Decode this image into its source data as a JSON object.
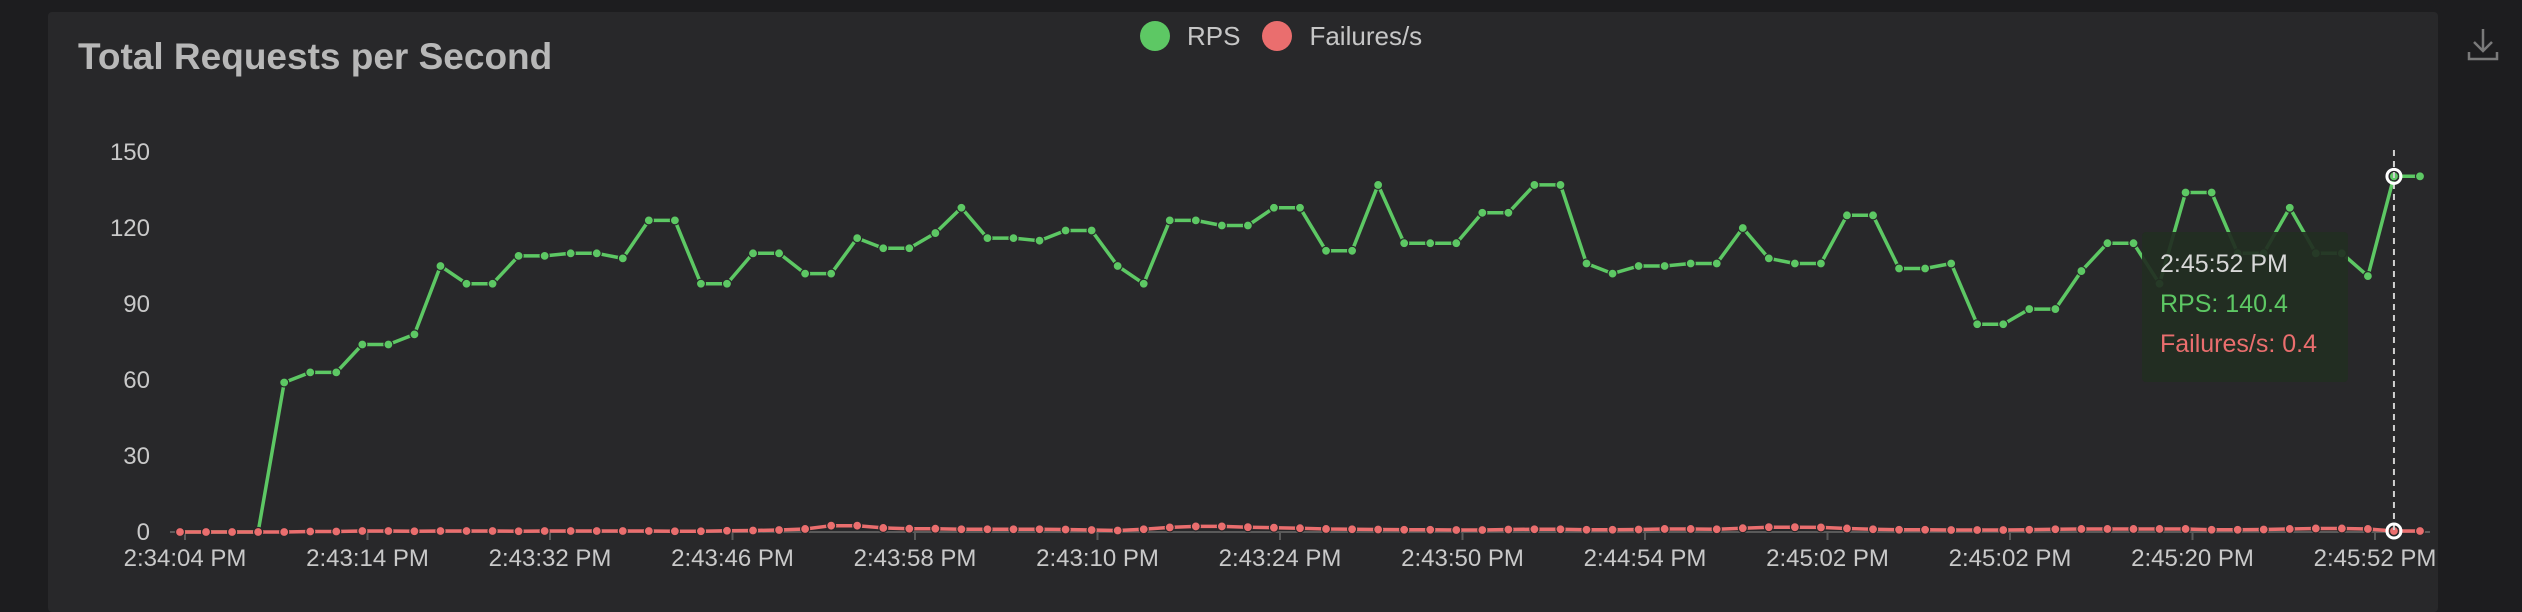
{
  "chart_data": {
    "type": "line",
    "title": "Total Requests per Second",
    "xlabel": "",
    "ylabel": "",
    "ylim": [
      0,
      150
    ],
    "yticks": [
      0,
      30,
      60,
      90,
      120,
      150
    ],
    "grid": false,
    "legend_position": "top-center",
    "x_tick_labels": [
      "2:34:04 PM",
      "2:43:14 PM",
      "2:43:32 PM",
      "2:43:46 PM",
      "2:43:58 PM",
      "2:43:10 PM",
      "2:43:24 PM",
      "2:43:50 PM",
      "2:44:54 PM",
      "2:45:02 PM",
      "2:45:02 PM",
      "2:45:20 PM",
      "2:45:52 PM"
    ],
    "series": [
      {
        "name": "RPS",
        "color": "#5dc864",
        "values": [
          0,
          0,
          0,
          0,
          59,
          63,
          63,
          74,
          74,
          78,
          105,
          98,
          98,
          109,
          109,
          110,
          110,
          108,
          123,
          123,
          98,
          98,
          110,
          110,
          102,
          102,
          116,
          112,
          112,
          118,
          128,
          116,
          116,
          115,
          119,
          119,
          105,
          98,
          123,
          123,
          121,
          121,
          128,
          128,
          111,
          111,
          137,
          114,
          114,
          114,
          126,
          126,
          137,
          137,
          106,
          102,
          105,
          105,
          106,
          106,
          120,
          108,
          106,
          106,
          125,
          125,
          104,
          104,
          106,
          82,
          82,
          88,
          88,
          103,
          114,
          114,
          98,
          134,
          134,
          110,
          110,
          128,
          110,
          110,
          101,
          140.4,
          140.4
        ]
      },
      {
        "name": "Failures/s",
        "color": "#ea6e6e",
        "values": [
          0,
          0,
          0,
          0,
          0,
          0.2,
          0.2,
          0.4,
          0.4,
          0.3,
          0.4,
          0.4,
          0.4,
          0.3,
          0.4,
          0.4,
          0.4,
          0.4,
          0.4,
          0.3,
          0.3,
          0.5,
          0.6,
          0.8,
          1.2,
          2.5,
          2.5,
          1.6,
          1.3,
          1.3,
          1.1,
          1.1,
          1.1,
          1.1,
          1,
          0.8,
          0.6,
          1.1,
          1.8,
          2.2,
          2.2,
          1.9,
          1.7,
          1.5,
          1.2,
          1.1,
          1,
          0.9,
          0.9,
          0.8,
          0.8,
          1,
          1.1,
          1.1,
          0.9,
          0.9,
          1,
          1.2,
          1.2,
          1.1,
          1.5,
          1.9,
          1.9,
          1.8,
          1.4,
          1.1,
          0.9,
          0.9,
          0.8,
          0.8,
          0.8,
          0.9,
          1.1,
          1.2,
          1.2,
          1.2,
          1.2,
          1.2,
          0.9,
          0.9,
          1,
          1.2,
          1.4,
          1.4,
          1.2,
          0.4,
          0.4
        ]
      }
    ],
    "tooltip": {
      "time": "2:45:52 PM",
      "rps_text": "RPS: 140.4",
      "failures_text": "Failures/s: 0.4"
    }
  },
  "icons": {
    "download": "download-icon"
  }
}
